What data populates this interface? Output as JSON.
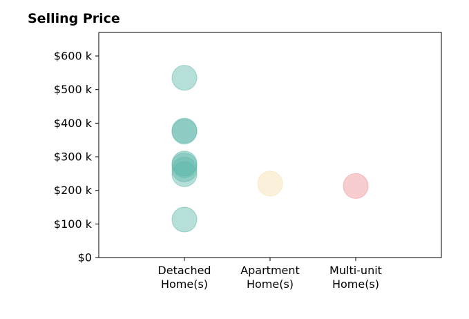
{
  "chart_data": {
    "type": "scatter",
    "title": "Selling Price",
    "xlabel": "",
    "ylabel": "",
    "categories": [
      [
        "Detached",
        "Home(s)"
      ],
      [
        "Apartment",
        "Home(s)"
      ],
      [
        "Multi-unit",
        "Home(s)"
      ]
    ],
    "xlim": [
      -1,
      3
    ],
    "ylim": [
      0,
      670000
    ],
    "y_ticks": [
      0,
      100000,
      200000,
      300000,
      400000,
      500000,
      600000
    ],
    "y_tick_labels": [
      "$0",
      "$100 k",
      "$200 k",
      "$300 k",
      "$400 k",
      "$500 k",
      "$600 k"
    ],
    "grid": false,
    "legend": "none",
    "series": [
      {
        "category_index": 0,
        "color": "#5fb8aa",
        "values": [
          535000,
          378000,
          375000,
          280000,
          275000,
          262000,
          248000,
          113000
        ]
      },
      {
        "category_index": 1,
        "color": "#f6dfae",
        "values": [
          220000
        ]
      },
      {
        "category_index": 2,
        "color": "#f09096",
        "values": [
          213000
        ]
      }
    ]
  }
}
